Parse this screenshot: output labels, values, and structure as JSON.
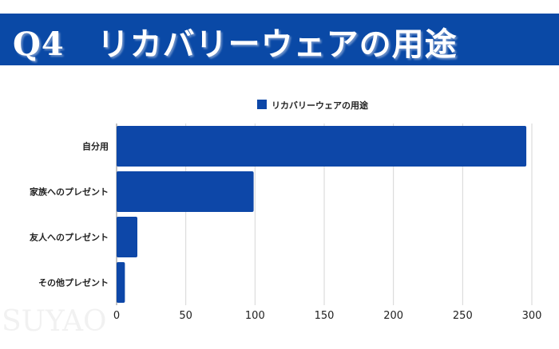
{
  "banner": {
    "title": "Q4　リカバリーウェアの用途"
  },
  "watermark": "SUYAO",
  "chart_data": {
    "type": "bar",
    "orientation": "horizontal",
    "categories": [
      "自分用",
      "家族へのプレゼント",
      "友人へのプレゼント",
      "その他プレゼント"
    ],
    "series": [
      {
        "name": "リカバリーウェアの用途",
        "values": [
          296,
          99,
          15,
          6
        ],
        "color": "#0d47a8"
      }
    ],
    "xlim": [
      0,
      300
    ],
    "xticks": [
      0,
      50,
      100,
      150,
      200,
      250,
      300
    ],
    "grid": true,
    "legend": "top"
  }
}
